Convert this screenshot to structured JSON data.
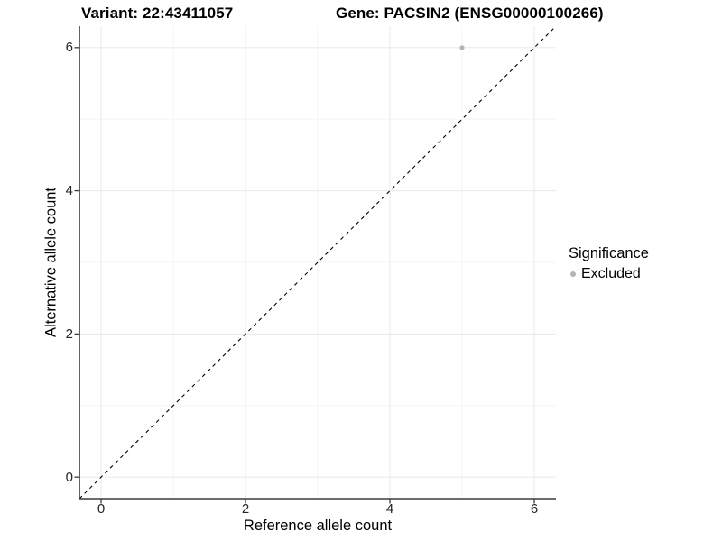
{
  "colors": {
    "point": "#b4b4b4",
    "grid_major": "#ebebeb",
    "grid_minor": "#f5f5f5",
    "axis_line": "#3c3c3c",
    "identity_line": "#000000",
    "tick_text": "#262626",
    "title_text": "#000000",
    "background": "#ffffff"
  },
  "chart_data": {
    "type": "scatter",
    "title_left": "Variant: 22:43411057",
    "title_right": "Gene: PACSIN2 (ENSG00000100266)",
    "xlabel": "Reference allele count",
    "ylabel": "Alternative allele count",
    "xlim": [
      -0.3,
      6.3
    ],
    "ylim": [
      -0.3,
      6.3
    ],
    "x_major_ticks": [
      0,
      2,
      4,
      6
    ],
    "y_major_ticks": [
      0,
      2,
      4,
      6
    ],
    "x_minor_ticks": [
      1,
      3,
      5
    ],
    "y_minor_ticks": [
      1,
      3,
      5
    ],
    "grid": true,
    "identity_line": {
      "equation": "y = x",
      "style": "dashed",
      "color": "#000000"
    },
    "series": [
      {
        "name": "Excluded",
        "color": "#b4b4b4",
        "points": [
          {
            "x": 5,
            "y": 6
          }
        ]
      }
    ],
    "legend": {
      "title": "Significance",
      "position": "right",
      "entries": [
        "Excluded"
      ]
    }
  }
}
